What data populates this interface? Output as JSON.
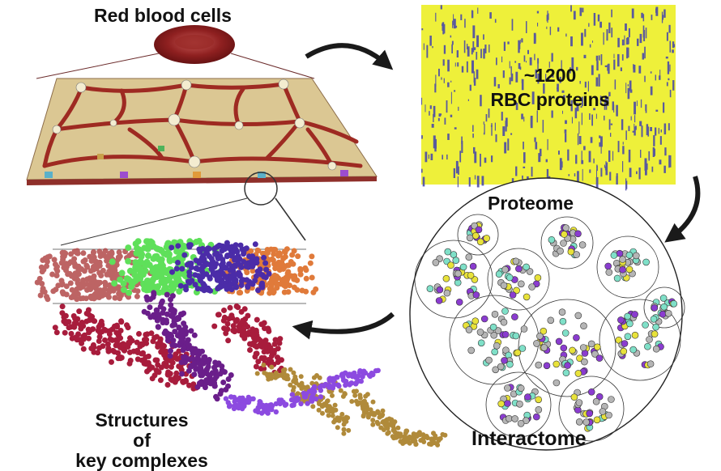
{
  "labels": {
    "rbc_title": "Red blood cells",
    "heatmap_count": "~1200",
    "heatmap_caption": "RBC proteins",
    "proteome": "Proteome",
    "interactome": "Interactome",
    "structures_line1": "Structures",
    "structures_line2": "of",
    "structures_line3": "key complexes"
  },
  "colors": {
    "membrane": "#d9c48e",
    "spectrin": "#9e2a22",
    "heatmap_bg": "#eef03a",
    "heatmap_marks": "#4b4aa8",
    "node_purple": "#8a3ccf",
    "node_yellow": "#e8e23a",
    "node_grey": "#b5b5b5",
    "node_teal": "#7fe0c8",
    "arrow": "#1a1a1a"
  }
}
